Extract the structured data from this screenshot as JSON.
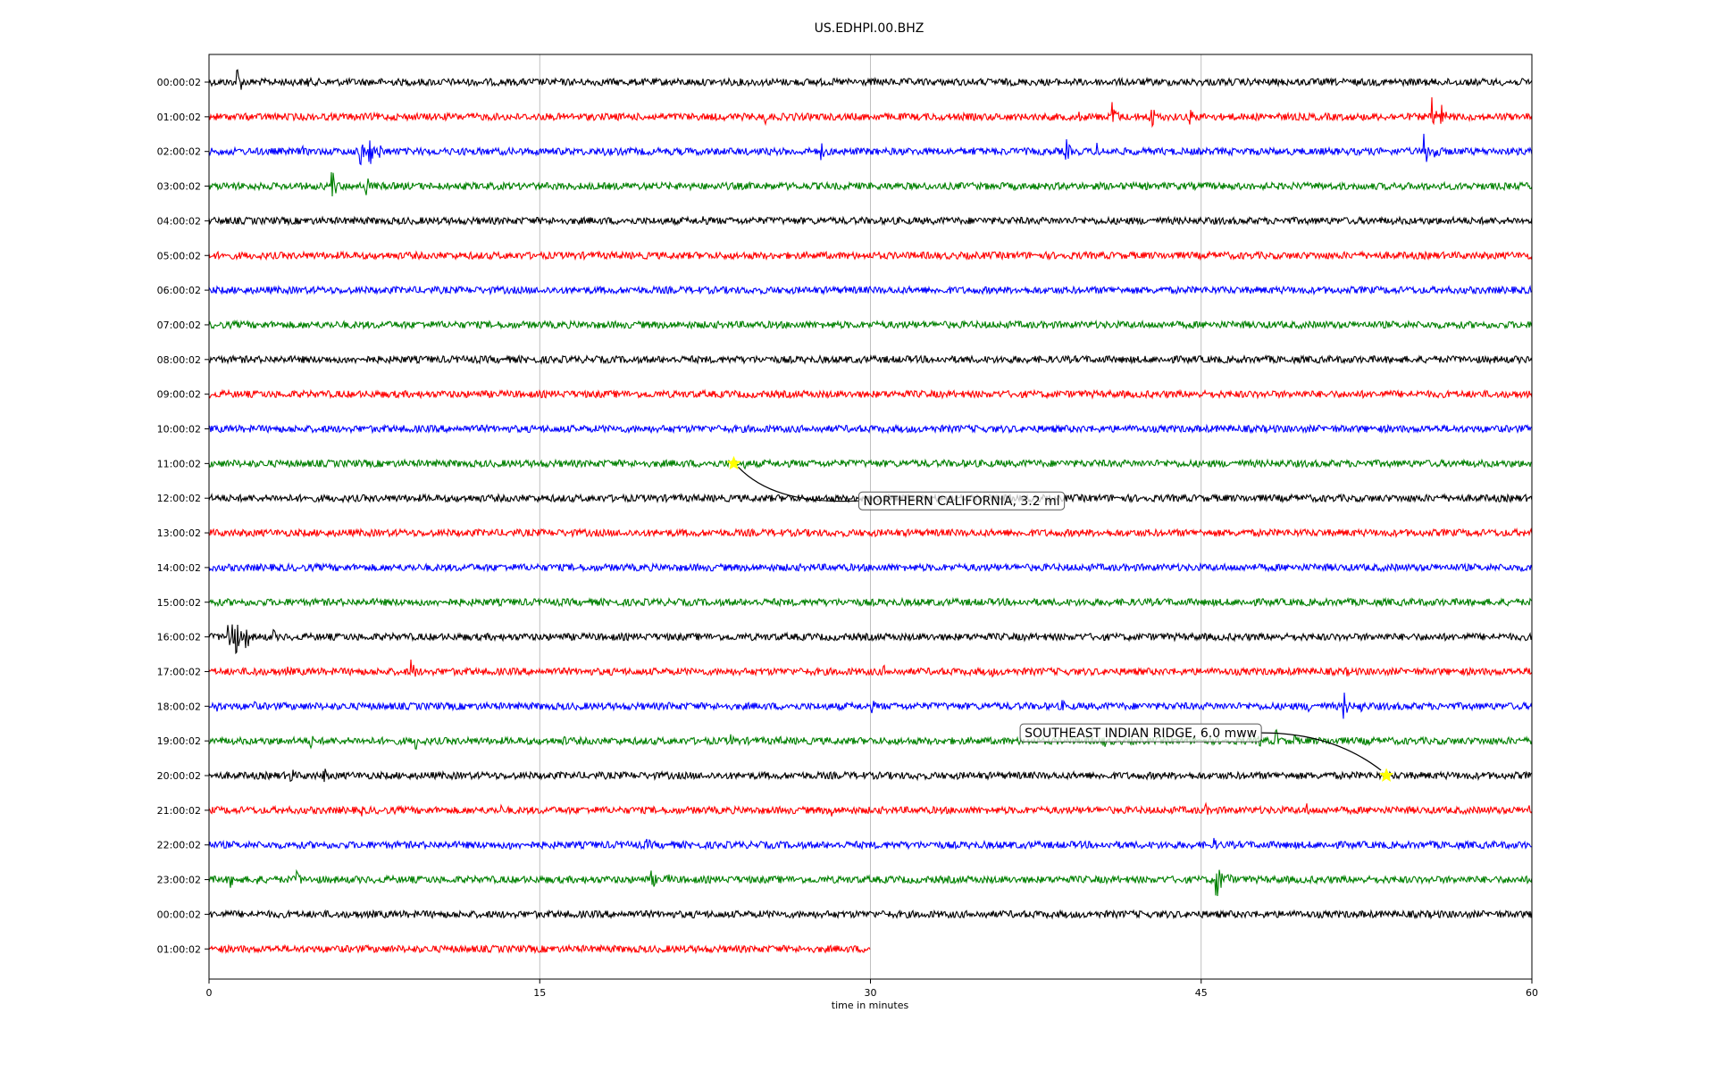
{
  "chart_data": {
    "type": "line",
    "title": "US.EDHPI.00.BHZ",
    "xlabel": "time in minutes",
    "ylabel": "",
    "xlim": [
      0,
      60
    ],
    "x_ticks": [
      0,
      15,
      30,
      45,
      60
    ],
    "grid_x": true,
    "colors": [
      "#000000",
      "#ff0000",
      "#0000ff",
      "#008000"
    ],
    "rows": [
      {
        "label": "00:00:02",
        "end_minute": 60,
        "events": [
          {
            "t": 1.3,
            "a": 1.0
          },
          {
            "t": 4.5,
            "a": 0.4
          },
          {
            "t": 27.4,
            "a": 0.3
          }
        ]
      },
      {
        "label": "01:00:02",
        "end_minute": 60,
        "events": [
          {
            "t": 12.8,
            "a": 0.2
          },
          {
            "t": 16.5,
            "a": 0.2
          },
          {
            "t": 25.2,
            "a": 0.5
          },
          {
            "t": 26.5,
            "a": 0.3
          },
          {
            "t": 36.2,
            "a": 0.2
          },
          {
            "t": 39.5,
            "a": 0.3
          },
          {
            "t": 41.0,
            "a": 1.0
          },
          {
            "t": 42.7,
            "a": 1.0
          },
          {
            "t": 44.5,
            "a": 0.6
          },
          {
            "t": 55.5,
            "a": 1.1
          },
          {
            "t": 55.9,
            "a": 0.8
          },
          {
            "t": 58.8,
            "a": 0.3
          }
        ]
      },
      {
        "label": "02:00:02",
        "end_minute": 60,
        "events": [
          {
            "t": 4.3,
            "a": 0.3
          },
          {
            "t": 6.8,
            "a": 1.2
          },
          {
            "t": 7.3,
            "a": 0.9
          },
          {
            "t": 7.7,
            "a": 0.7
          },
          {
            "t": 17.9,
            "a": 0.3
          },
          {
            "t": 27.8,
            "a": 0.5
          },
          {
            "t": 34.7,
            "a": 0.3
          },
          {
            "t": 38.9,
            "a": 0.7
          },
          {
            "t": 40.3,
            "a": 0.5
          },
          {
            "t": 41.8,
            "a": 0.3
          },
          {
            "t": 55.1,
            "a": 1.2
          },
          {
            "t": 55.6,
            "a": 0.8
          }
        ]
      },
      {
        "label": "03:00:02",
        "end_minute": 60,
        "events": [
          {
            "t": 5.6,
            "a": 1.0
          },
          {
            "t": 7.1,
            "a": 0.8
          },
          {
            "t": 12.6,
            "a": 0.2
          }
        ]
      },
      {
        "label": "04:00:02",
        "end_minute": 60,
        "events": [
          {
            "t": 22.4,
            "a": 0.4
          }
        ]
      },
      {
        "label": "05:00:02",
        "end_minute": 60,
        "events": []
      },
      {
        "label": "06:00:02",
        "end_minute": 60,
        "events": []
      },
      {
        "label": "07:00:02",
        "end_minute": 60,
        "events": []
      },
      {
        "label": "08:00:02",
        "end_minute": 60,
        "events": []
      },
      {
        "label": "09:00:02",
        "end_minute": 60,
        "events": [
          {
            "t": 3.6,
            "a": 0.15
          }
        ]
      },
      {
        "label": "10:00:02",
        "end_minute": 60,
        "events": [
          {
            "t": 15.9,
            "a": 0.15
          },
          {
            "t": 23.5,
            "a": 0.3
          }
        ]
      },
      {
        "label": "11:00:02",
        "end_minute": 60,
        "events": [
          {
            "t": 24.3,
            "a": 0.3
          },
          {
            "t": 53.7,
            "a": 0.1
          }
        ]
      },
      {
        "label": "12:00:02",
        "end_minute": 60,
        "events": []
      },
      {
        "label": "13:00:02",
        "end_minute": 60,
        "events": []
      },
      {
        "label": "14:00:02",
        "end_minute": 60,
        "events": [
          {
            "t": 44.7,
            "a": 0.3
          }
        ]
      },
      {
        "label": "15:00:02",
        "end_minute": 60,
        "events": []
      },
      {
        "label": "16:00:02",
        "end_minute": 60,
        "events": [
          {
            "t": 0.9,
            "a": 0.9
          },
          {
            "t": 1.1,
            "a": 2.0
          },
          {
            "t": 1.7,
            "a": 0.8
          },
          {
            "t": 2.9,
            "a": 0.5
          }
        ]
      },
      {
        "label": "17:00:02",
        "end_minute": 60,
        "events": [
          {
            "t": 2.0,
            "a": 0.5
          },
          {
            "t": 3.6,
            "a": 0.3
          },
          {
            "t": 9.2,
            "a": 0.8
          },
          {
            "t": 30.6,
            "a": 0.4
          },
          {
            "t": 35.5,
            "a": 0.4
          },
          {
            "t": 47.1,
            "a": 0.2
          },
          {
            "t": 49.3,
            "a": 0.4
          },
          {
            "t": 51.6,
            "a": 0.3
          }
        ]
      },
      {
        "label": "18:00:02",
        "end_minute": 60,
        "events": [
          {
            "t": 0.4,
            "a": 0.4
          },
          {
            "t": 2.1,
            "a": 0.3
          },
          {
            "t": 20.9,
            "a": 0.3
          },
          {
            "t": 30.1,
            "a": 0.4
          },
          {
            "t": 38.7,
            "a": 0.4
          },
          {
            "t": 49.9,
            "a": 0.4
          },
          {
            "t": 51.5,
            "a": 0.8
          },
          {
            "t": 52.2,
            "a": 0.5
          }
        ]
      },
      {
        "label": "19:00:02",
        "end_minute": 60,
        "events": [
          {
            "t": 4.6,
            "a": 0.5
          },
          {
            "t": 9.4,
            "a": 0.5
          },
          {
            "t": 16.1,
            "a": 0.4
          },
          {
            "t": 23.7,
            "a": 0.4
          },
          {
            "t": 25.9,
            "a": 0.3
          },
          {
            "t": 40.6,
            "a": 0.4
          },
          {
            "t": 47.6,
            "a": 0.5
          },
          {
            "t": 48.4,
            "a": 0.7
          },
          {
            "t": 49.2,
            "a": 0.5
          },
          {
            "t": 52.5,
            "a": 0.5
          }
        ]
      },
      {
        "label": "20:00:02",
        "end_minute": 60,
        "events": [
          {
            "t": 3.7,
            "a": 0.6
          },
          {
            "t": 5.2,
            "a": 0.6
          },
          {
            "t": 32.1,
            "a": 0.3
          },
          {
            "t": 53.5,
            "a": 0.3
          }
        ]
      },
      {
        "label": "21:00:02",
        "end_minute": 60,
        "events": [
          {
            "t": 2.6,
            "a": 0.2
          },
          {
            "t": 6.9,
            "a": 0.4
          },
          {
            "t": 13.2,
            "a": 0.4
          },
          {
            "t": 28.2,
            "a": 0.5
          },
          {
            "t": 45.2,
            "a": 0.4
          },
          {
            "t": 49.8,
            "a": 0.4
          },
          {
            "t": 59.9,
            "a": 0.4
          }
        ]
      },
      {
        "label": "22:00:02",
        "end_minute": 60,
        "events": [
          {
            "t": 13.6,
            "a": 0.4
          },
          {
            "t": 19.9,
            "a": 0.4
          },
          {
            "t": 45.6,
            "a": 0.4
          }
        ]
      },
      {
        "label": "23:00:02",
        "end_minute": 60,
        "events": [
          {
            "t": 1.0,
            "a": 0.5
          },
          {
            "t": 2.2,
            "a": 0.4
          },
          {
            "t": 4.0,
            "a": 0.6
          },
          {
            "t": 20.1,
            "a": 0.6
          },
          {
            "t": 20.8,
            "a": 0.5
          },
          {
            "t": 45.7,
            "a": 1.5
          },
          {
            "t": 46.2,
            "a": 0.6
          }
        ]
      },
      {
        "label": "00:00:02",
        "end_minute": 60,
        "events": [
          {
            "t": 9.3,
            "a": 0.2
          },
          {
            "t": 43.3,
            "a": 0.3
          }
        ]
      },
      {
        "label": "01:00:02",
        "end_minute": 30,
        "events": []
      }
    ],
    "annotations": [
      {
        "text": "NORTHERN CALIFORNIA, 3.2 ml",
        "row": 11,
        "t": 23.8
      },
      {
        "text": "SOUTHEAST INDIAN RIDGE, 6.0 mww",
        "row": 20,
        "t": 53.4
      }
    ]
  }
}
